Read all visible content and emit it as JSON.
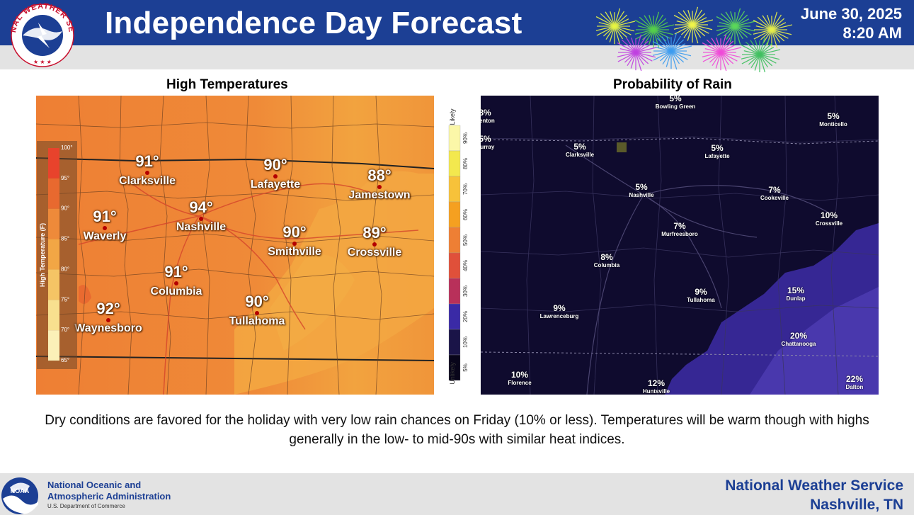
{
  "header": {
    "title": "Independence Day Forecast",
    "date": "June 30, 2025",
    "time": "8:20 AM",
    "logo_text": "NATIONAL WEATHER SERVICE",
    "brand_color": "#1c3f94"
  },
  "temp_map": {
    "title": "High Temperatures",
    "legend_title": "High Temperature (F)",
    "legend_ticks": [
      "100°",
      "95°",
      "90°",
      "85°",
      "80°",
      "75°",
      "70°",
      "65°"
    ],
    "cities": [
      {
        "name": "Clarksville",
        "value": "91°"
      },
      {
        "name": "Lafayette",
        "value": "90°"
      },
      {
        "name": "Jamestown",
        "value": "88°"
      },
      {
        "name": "Waverly",
        "value": "91°"
      },
      {
        "name": "Nashville",
        "value": "94°"
      },
      {
        "name": "Smithville",
        "value": "90°"
      },
      {
        "name": "Crossville",
        "value": "89°"
      },
      {
        "name": "Columbia",
        "value": "91°"
      },
      {
        "name": "Waynesboro",
        "value": "92°"
      },
      {
        "name": "Tullahoma",
        "value": "90°"
      }
    ]
  },
  "rain_map": {
    "title": "Probability of Rain",
    "legend_top": "Likely",
    "legend_bottom": "Unlikely",
    "legend_ticks": [
      "90%",
      "80%",
      "70%",
      "60%",
      "50%",
      "40%",
      "30%",
      "20%",
      "10%",
      "5%"
    ],
    "cities": [
      {
        "name": "Bowling Green",
        "value": "5%"
      },
      {
        "name": "Monticello",
        "value": "5%"
      },
      {
        "name": "Clarksville",
        "value": "5%"
      },
      {
        "name": "Lafayette",
        "value": "5%"
      },
      {
        "name": "Nashville",
        "value": "5%"
      },
      {
        "name": "Cookeville",
        "value": "7%"
      },
      {
        "name": "Crossville",
        "value": "10%"
      },
      {
        "name": "Murfreesboro",
        "value": "7%"
      },
      {
        "name": "Columbia",
        "value": "8%"
      },
      {
        "name": "Tullahoma",
        "value": "9%"
      },
      {
        "name": "Dunlap",
        "value": "15%"
      },
      {
        "name": "Lawrenceburg",
        "value": "9%"
      },
      {
        "name": "Chattanooga",
        "value": "20%"
      },
      {
        "name": "Florence",
        "value": "10%"
      },
      {
        "name": "Huntsville",
        "value": "12%"
      },
      {
        "name": "Dalton",
        "value": "22%"
      },
      {
        "name": "Benton",
        "value": "8%"
      },
      {
        "name": "Murray",
        "value": "5%"
      }
    ]
  },
  "caption": "Dry conditions are favored for the holiday with very low rain chances on Friday (10% or less). Temperatures will be warm though with highs generally in the low- to mid-90s with similar heat indices.",
  "footer": {
    "noaa_line1": "National Oceanic and",
    "noaa_line2": "Atmospheric Administration",
    "noaa_dept": "U.S. Department of Commerce",
    "noaa_logo_text": "NOAA",
    "office_line1": "National Weather Service",
    "office_line2": "Nashville, TN"
  }
}
